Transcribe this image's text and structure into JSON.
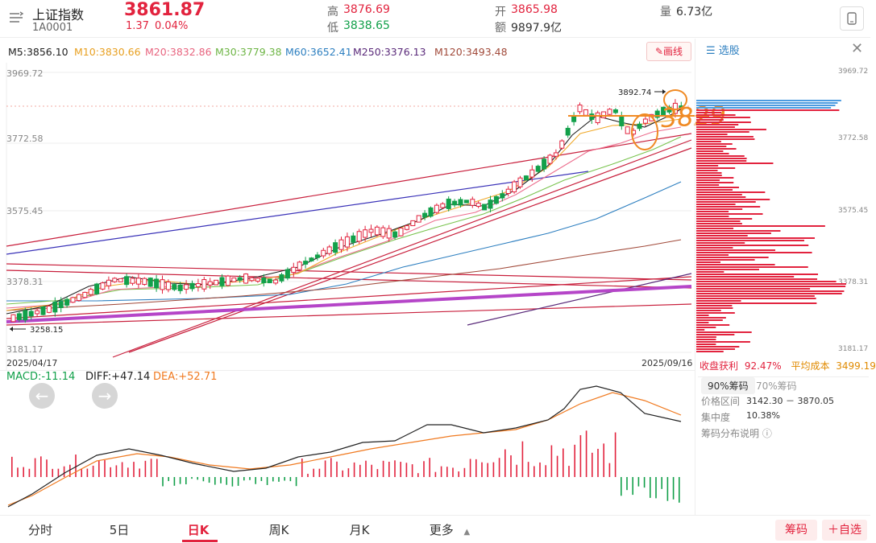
{
  "header": {
    "menu_icon": "list-menu-icon",
    "name": "上证指数",
    "code": "1A0001",
    "price": "3861.87",
    "change": "1.37",
    "change_pct": "0.04%",
    "high_label": "高",
    "high": "3876.69",
    "low_label": "低",
    "low": "3838.65",
    "open_label": "开",
    "open": "3865.98",
    "amount_label": "额",
    "amount": "9897.9亿",
    "volume_label": "量",
    "volume": "6.73亿",
    "device_icon": "phone-landscape-icon"
  },
  "ma_bar": {
    "m5": "M5:3856.10",
    "m10": "M10:3830.66",
    "m20": "M20:3832.86",
    "m30": "M30:3779.38",
    "m60": "M60:3652.41",
    "m250": "M250:3376.13",
    "m120": "M120:3493.48",
    "draw_label": "画线",
    "draw_icon": "pencil-icon"
  },
  "chart": {
    "y_ticks": [
      "3969.72",
      "3772.58",
      "3575.45",
      "3378.31",
      "3181.17"
    ],
    "start_date": "2025/04/17",
    "end_date": "2025/09/16",
    "high_marker": "3892.74",
    "low_marker": "3258.15",
    "annotation": "3829",
    "colors": {
      "up": "#e2233e",
      "down": "#12a04a",
      "ma5": "#222222",
      "ma10": "#f0a92a",
      "ma20": "#ec6d8d",
      "ma30": "#79c34e",
      "ma60": "#2d7fc0",
      "ma250": "#5a2a7a",
      "ma120": "#a14a3a",
      "annot": "#f08a24"
    }
  },
  "chip": {
    "select_label": "选股",
    "select_icon": "stock-filter-icon",
    "close_icon": "close-icon",
    "y_ticks": [
      "3969.72",
      "3772.58",
      "3575.45",
      "3378.31",
      "3181.17"
    ],
    "profit_label": "收盘获利",
    "profit": "92.47%",
    "avg_cost_label": "平均成本",
    "avg_cost": "3499.19",
    "tab_90": "90%筹码",
    "tab_70": "70%筹码",
    "range_label": "价格区间",
    "range": "3142.30 － 3870.05",
    "conc_label": "集中度",
    "conc": "10.38%",
    "explain_label": "筹码分布说明",
    "explain_icon": "question-circle-icon"
  },
  "macd": {
    "macd": "MACD:-11.14",
    "diff": "DIFF:+47.14",
    "dea": "DEA:+52.71",
    "prev_icon": "arrow-left-icon",
    "next_icon": "arrow-right-icon"
  },
  "bottom": {
    "tabs": [
      "分时",
      "5日",
      "日K",
      "周K",
      "月K",
      "更多"
    ],
    "active": "日K",
    "more_icon": "triangle-up-icon",
    "chip_btn": "筹码",
    "watch_btn": "＋自选"
  }
}
